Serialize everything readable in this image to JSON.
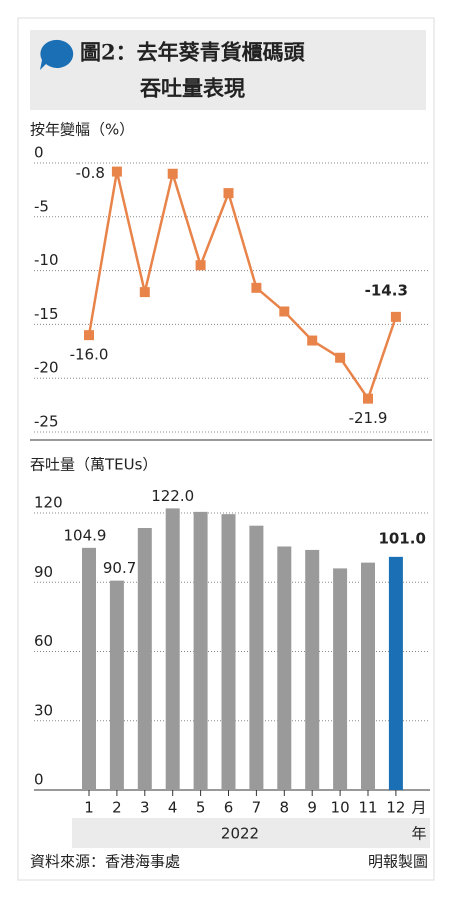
{
  "header": {
    "title": [
      "圖2：去年葵青貨櫃碼頭",
      "吞吐量表現"
    ]
  },
  "chart_data": [
    {
      "type": "line",
      "ylabel": "按年變幅（%）",
      "color": "#e8834a",
      "highlight": 11,
      "highlight_color": "#e8834a",
      "values": [
        -16.0,
        -0.8,
        -12.0,
        -1.0,
        -9.5,
        -2.8,
        -11.6,
        -13.8,
        -16.5,
        -18.1,
        -21.9,
        -14.3
      ],
      "value_labels": [
        "-16.0",
        "-0.8",
        null,
        null,
        null,
        null,
        null,
        null,
        null,
        null,
        "-21.9",
        "-14.3"
      ],
      "ylim": [
        -25,
        0
      ],
      "yticks": [
        0,
        -5,
        -10,
        -15,
        -20,
        -25
      ],
      "grid": true
    },
    {
      "type": "bar",
      "ylabel": "吞吐量（萬TEUs）",
      "color": "#9a9a9a",
      "highlight": 11,
      "highlight_color": "#1a6fb5",
      "categories": [
        "1",
        "2",
        "3",
        "4",
        "5",
        "6",
        "7",
        "8",
        "9",
        "10",
        "11",
        "12"
      ],
      "x_unit": "月",
      "x_label": "2022",
      "x_label_unit": "年",
      "values": [
        104.9,
        90.7,
        113.5,
        122.0,
        120.5,
        119.5,
        114.5,
        105.5,
        104.0,
        96.0,
        98.5,
        101.0
      ],
      "value_labels": [
        "104.9",
        "90.7",
        null,
        "122.0",
        null,
        null,
        null,
        null,
        null,
        null,
        null,
        "101.0"
      ],
      "ylim": [
        0,
        120
      ],
      "yticks": [
        0,
        30,
        60,
        90,
        120
      ],
      "grid": true
    }
  ],
  "footer": {
    "source": "資料來源：香港海事處",
    "credit": "明報製圖"
  }
}
